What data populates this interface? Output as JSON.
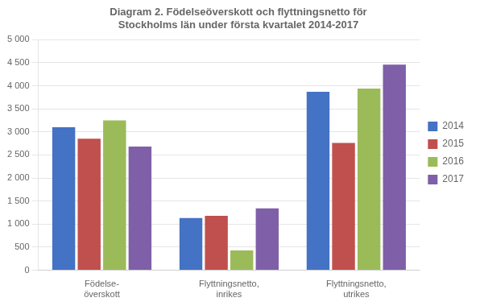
{
  "chart_data": {
    "type": "bar",
    "title": "Diagram 2. Födelseöverskott och flyttningsnetto för\nStockholms län under första kvartalet 2014-2017",
    "categories": [
      "Födelse-\növerskott",
      "Flyttningsnetto,\ninrikes",
      "Flyttningsnetto,\nutrikes"
    ],
    "series": [
      {
        "name": "2014",
        "color": "#4472C4",
        "values": [
          3100,
          1130,
          3870
        ]
      },
      {
        "name": "2015",
        "color": "#C0504D",
        "values": [
          2850,
          1180,
          2760
        ]
      },
      {
        "name": "2016",
        "color": "#9BBB59",
        "values": [
          3250,
          430,
          3940
        ]
      },
      {
        "name": "2017",
        "color": "#7F5FA8",
        "values": [
          2680,
          1340,
          4460
        ]
      }
    ],
    "ylim": [
      0,
      5000
    ],
    "yticks": [
      0,
      500,
      {
        "value": 1000,
        "label": "1 000"
      },
      {
        "value": 1500,
        "label": "1 500"
      },
      {
        "value": 2000,
        "label": "2 000"
      },
      {
        "value": 2500,
        "label": "2 500"
      },
      {
        "value": 3000,
        "label": "3 000"
      },
      {
        "value": 3500,
        "label": "3 500"
      },
      {
        "value": 4000,
        "label": "4 000"
      },
      {
        "value": 4500,
        "label": "4 500"
      },
      {
        "value": 5000,
        "label": "5 000"
      }
    ],
    "grid": true,
    "legend": "right"
  }
}
